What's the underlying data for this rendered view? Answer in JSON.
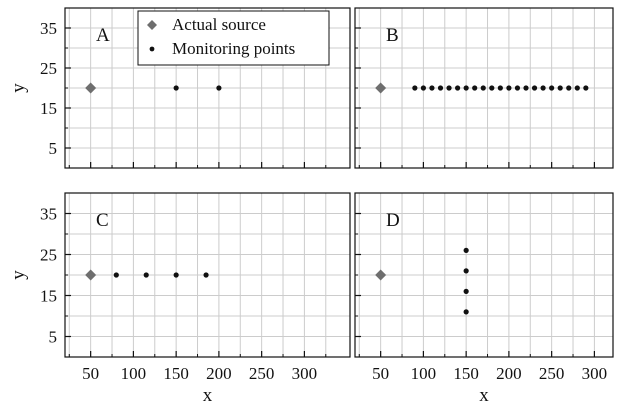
{
  "chart_data": {
    "type": "scatter",
    "legend": {
      "placement": "top-left panel (A)",
      "entries": [
        {
          "label": "Actual source",
          "marker": "diamond"
        },
        {
          "label": "Monitoring points",
          "marker": "dot"
        }
      ]
    },
    "xlim": [
      20,
      330
    ],
    "ylim": [
      0,
      40
    ],
    "xticks": [
      50,
      100,
      150,
      200,
      250,
      300
    ],
    "yticks": [
      5,
      15,
      25,
      35
    ],
    "x_minor_ticks": [
      25,
      75,
      125,
      175,
      225,
      275,
      325
    ],
    "y_minor_ticks": [
      10,
      20,
      30
    ],
    "grid": true,
    "colors": {
      "source": "#6e6e6e",
      "monitor": "#111111",
      "grid": "#cccccc",
      "axes": "#111111"
    },
    "panels": [
      {
        "label": "A",
        "xlabel": "",
        "ylabel": "y",
        "source": {
          "x": 50,
          "y": 20
        },
        "monitoring_points": {
          "x": [
            150,
            200
          ],
          "y": [
            20,
            20
          ]
        }
      },
      {
        "label": "B",
        "xlabel": "",
        "ylabel": "",
        "source": {
          "x": 50,
          "y": 20
        },
        "monitoring_points": {
          "x": [
            90,
            100,
            110,
            120,
            130,
            140,
            150,
            160,
            170,
            180,
            190,
            200,
            210,
            220,
            230,
            240,
            250,
            260,
            270,
            280,
            290
          ],
          "y": [
            20,
            20,
            20,
            20,
            20,
            20,
            20,
            20,
            20,
            20,
            20,
            20,
            20,
            20,
            20,
            20,
            20,
            20,
            20,
            20,
            20
          ]
        }
      },
      {
        "label": "C",
        "xlabel": "x",
        "ylabel": "y",
        "source": {
          "x": 50,
          "y": 20
        },
        "monitoring_points": {
          "x": [
            80,
            115,
            150,
            185
          ],
          "y": [
            20,
            20,
            20,
            20
          ]
        }
      },
      {
        "label": "D",
        "xlabel": "x",
        "ylabel": "",
        "source": {
          "x": 50,
          "y": 20
        },
        "monitoring_points": {
          "x": [
            150,
            150,
            150,
            150
          ],
          "y": [
            26,
            21,
            16,
            11
          ]
        }
      }
    ]
  }
}
